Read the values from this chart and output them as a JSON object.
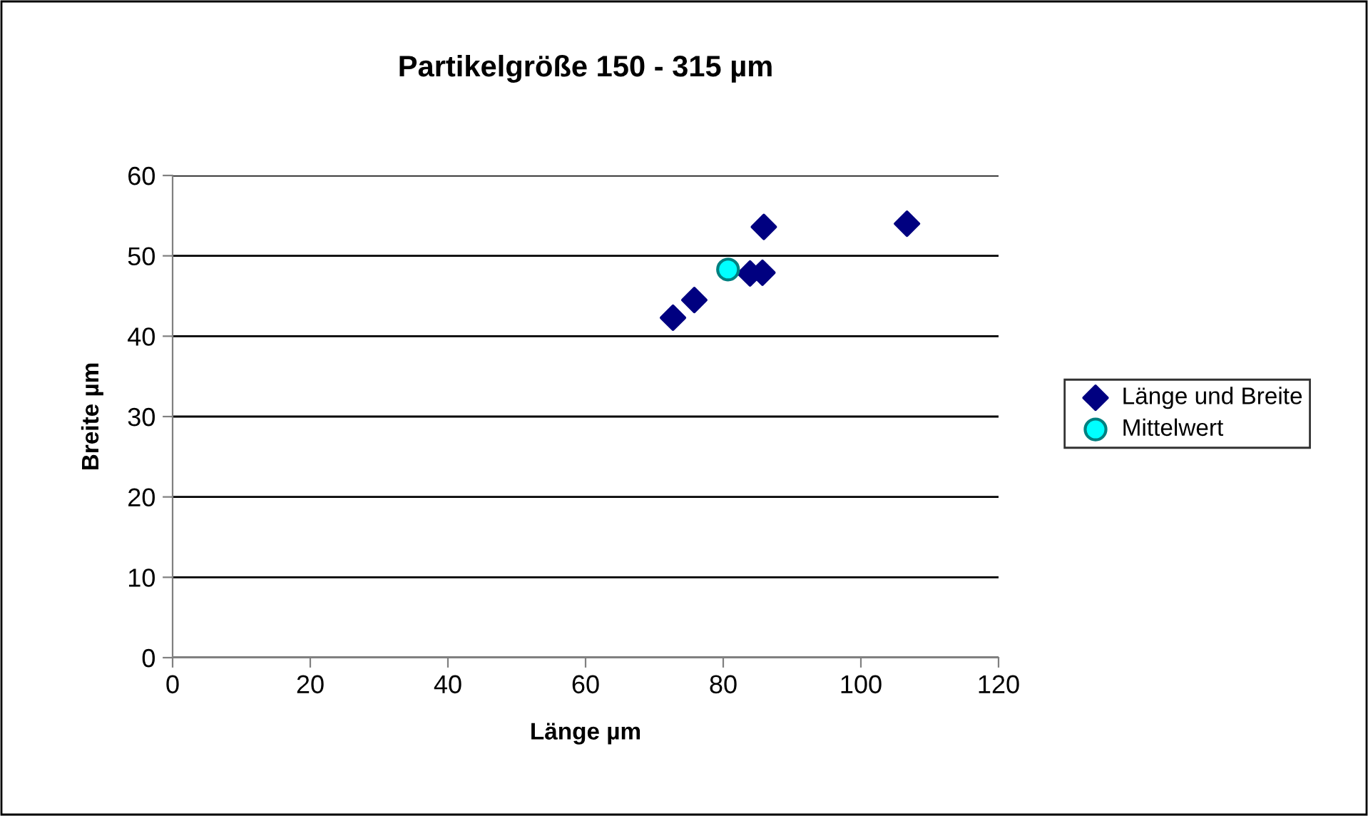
{
  "chart_data": {
    "type": "scatter",
    "title": "Partikelgröße 150 - 315 µm",
    "xlabel": "Länge µm",
    "ylabel": "Breite µm",
    "series": [
      {
        "name": "Länge und Breite",
        "color": "#000080",
        "marker": "diamond",
        "x": [
          72.7,
          75.8,
          83.9,
          85.7,
          85.9,
          106.7
        ],
        "values": [
          42.3,
          44.5,
          47.8,
          47.9,
          53.6,
          54.0
        ]
      },
      {
        "name": "Mittelwert",
        "color": "#00ffff",
        "marker": "circle",
        "x": [
          80.7
        ],
        "values": [
          48.3
        ]
      }
    ],
    "xlim": [
      0,
      120
    ],
    "xticks": [
      0,
      20,
      40,
      60,
      80,
      100,
      120
    ],
    "ylim": [
      0,
      60
    ],
    "yticks": [
      0,
      10,
      20,
      30,
      40,
      50,
      60
    ],
    "grid": "y",
    "legend": "right"
  }
}
